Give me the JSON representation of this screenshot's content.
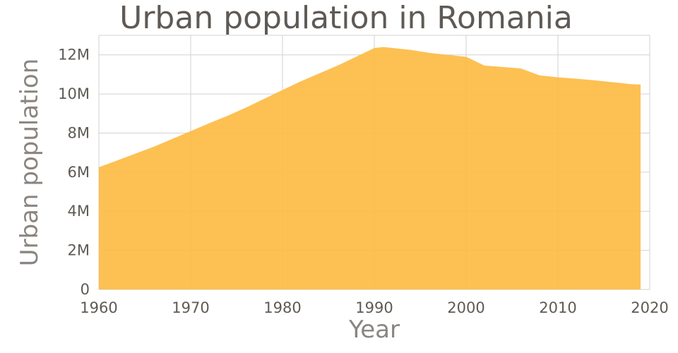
{
  "chart_data": {
    "type": "area",
    "title": "Urban population in Romania",
    "xlabel": "Year",
    "ylabel": "Urban population",
    "xlim": [
      1960,
      2020
    ],
    "ylim": [
      0,
      13000000
    ],
    "x_ticks": [
      1960,
      1970,
      1980,
      1990,
      2000,
      2010,
      2020
    ],
    "x_tick_labels": [
      "1960",
      "1970",
      "1980",
      "1990",
      "2000",
      "2010",
      "2020"
    ],
    "y_ticks": [
      0,
      2000000,
      4000000,
      6000000,
      8000000,
      10000000,
      12000000
    ],
    "y_tick_labels": [
      "0",
      "2M",
      "4M",
      "6M",
      "8M",
      "10M",
      "12M"
    ],
    "grid": true,
    "color": "#fdbb43",
    "series": [
      {
        "x": [
          1960,
          1962,
          1964,
          1966,
          1968,
          1970,
          1972,
          1974,
          1976,
          1978,
          1980,
          1982,
          1984,
          1986,
          1988,
          1990,
          1991,
          1992,
          1994,
          1996,
          1998,
          2000,
          2002,
          2004,
          2006,
          2008,
          2010,
          2012,
          2014,
          2016,
          2018,
          2019
        ],
        "y": [
          6250000,
          6600000,
          6950000,
          7300000,
          7700000,
          8100000,
          8500000,
          8880000,
          9300000,
          9750000,
          10200000,
          10650000,
          11050000,
          11450000,
          11900000,
          12350000,
          12400000,
          12350000,
          12250000,
          12100000,
          12000000,
          11900000,
          11450000,
          11380000,
          11300000,
          10950000,
          10850000,
          10780000,
          10700000,
          10600000,
          10500000,
          10480000
        ]
      }
    ]
  }
}
